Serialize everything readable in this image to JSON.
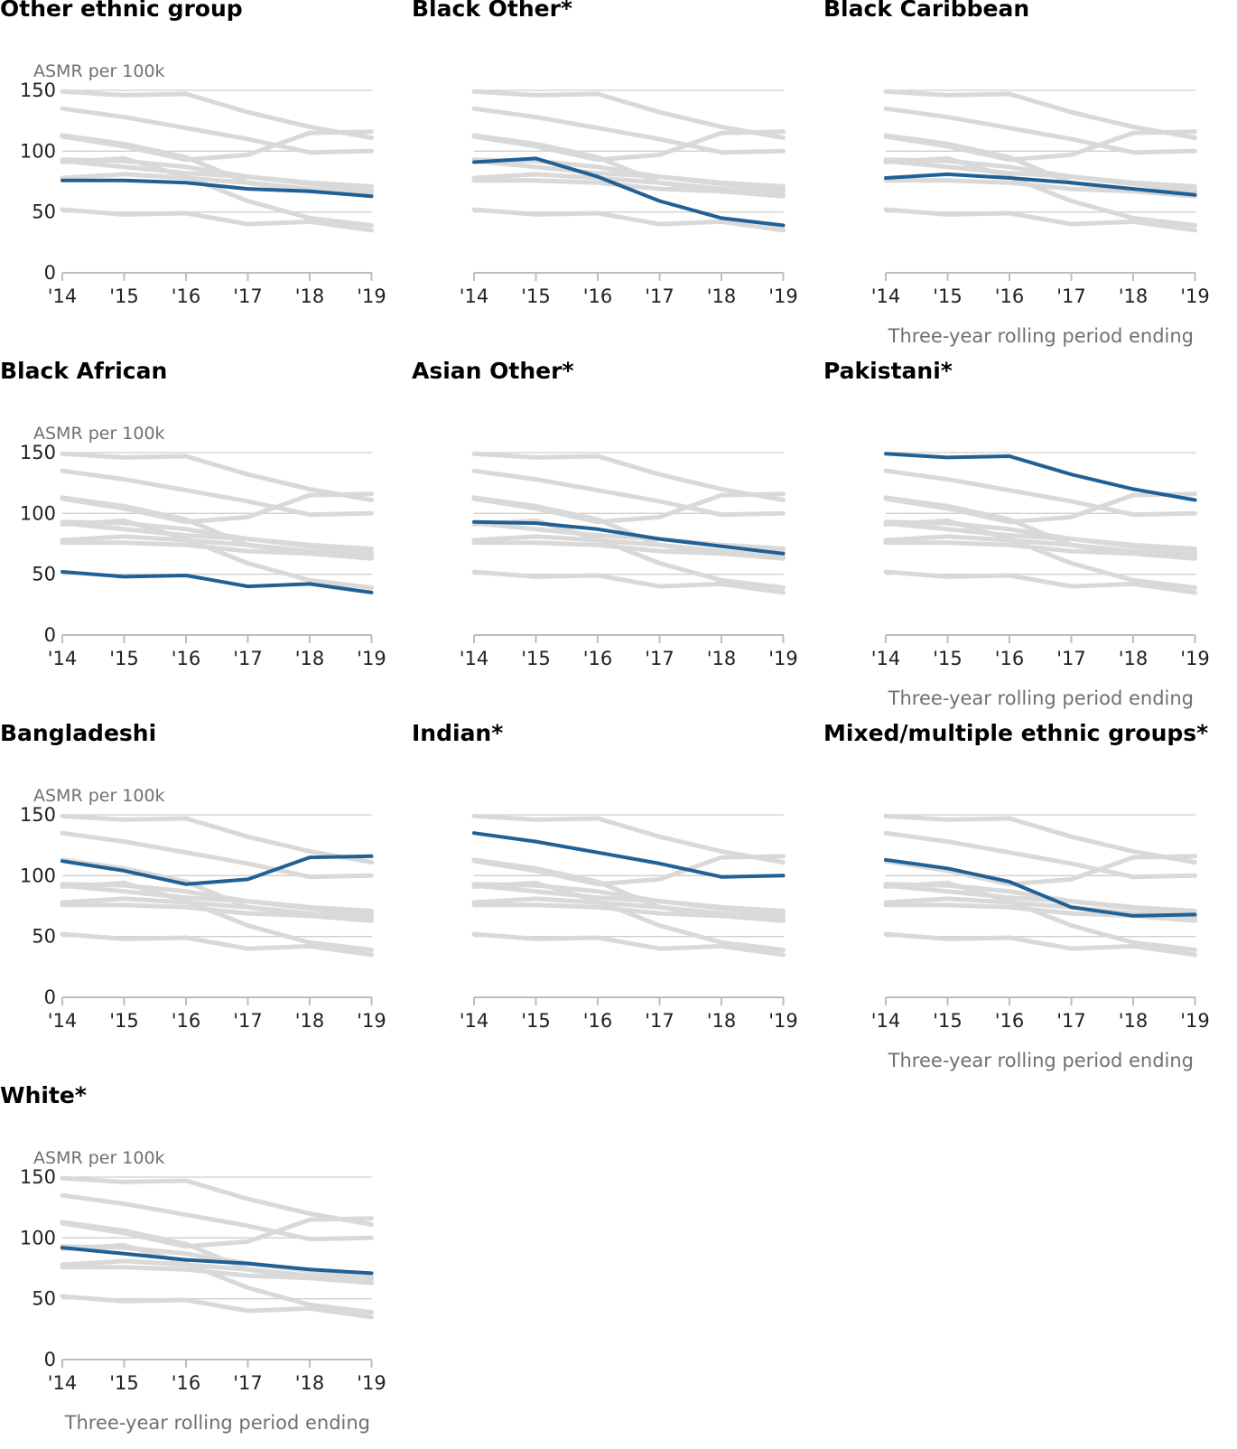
{
  "y_axis_label": "ASMR per 100k",
  "x_axis_label": "Three-year rolling period ending",
  "chart_data": [
    {
      "type": "line",
      "title": "Other ethnic group",
      "highlight": "Other ethnic group",
      "show_ylabel": true,
      "show_xlabel": false,
      "x": [
        "'14",
        "'15",
        "'16",
        "'17",
        "'18",
        "'19"
      ],
      "y_ticks": [
        "0",
        "50",
        "100",
        "150"
      ],
      "ylim": [
        0,
        150
      ],
      "grid": "horizontal",
      "highlight_color": "#206095",
      "background_color": "#d9d9d9"
    },
    {
      "type": "line",
      "title": "Black Other*",
      "highlight": "Black Other*",
      "show_ylabel": false,
      "show_xlabel": false,
      "x": [
        "'14",
        "'15",
        "'16",
        "'17",
        "'18",
        "'19"
      ],
      "y_ticks": [],
      "ylim": [
        0,
        150
      ],
      "grid": "horizontal",
      "highlight_color": "#206095",
      "background_color": "#d9d9d9"
    },
    {
      "type": "line",
      "title": "Black Caribbean",
      "highlight": "Black Caribbean",
      "show_ylabel": false,
      "show_xlabel": true,
      "x": [
        "'14",
        "'15",
        "'16",
        "'17",
        "'18",
        "'19"
      ],
      "y_ticks": [],
      "ylim": [
        0,
        150
      ],
      "grid": "horizontal",
      "highlight_color": "#206095",
      "background_color": "#d9d9d9"
    },
    {
      "type": "line",
      "title": "Black African",
      "highlight": "Black African",
      "show_ylabel": true,
      "show_xlabel": false,
      "x": [
        "'14",
        "'15",
        "'16",
        "'17",
        "'18",
        "'19"
      ],
      "y_ticks": [
        "0",
        "50",
        "100",
        "150"
      ],
      "ylim": [
        0,
        150
      ],
      "grid": "horizontal",
      "highlight_color": "#206095",
      "background_color": "#d9d9d9"
    },
    {
      "type": "line",
      "title": "Asian Other*",
      "highlight": "Asian Other*",
      "show_ylabel": false,
      "show_xlabel": false,
      "x": [
        "'14",
        "'15",
        "'16",
        "'17",
        "'18",
        "'19"
      ],
      "y_ticks": [],
      "ylim": [
        0,
        150
      ],
      "grid": "horizontal",
      "highlight_color": "#206095",
      "background_color": "#d9d9d9"
    },
    {
      "type": "line",
      "title": "Pakistani*",
      "highlight": "Pakistani*",
      "show_ylabel": false,
      "show_xlabel": true,
      "x": [
        "'14",
        "'15",
        "'16",
        "'17",
        "'18",
        "'19"
      ],
      "y_ticks": [],
      "ylim": [
        0,
        150
      ],
      "grid": "horizontal",
      "highlight_color": "#206095",
      "background_color": "#d9d9d9"
    },
    {
      "type": "line",
      "title": "Bangladeshi",
      "highlight": "Bangladeshi",
      "show_ylabel": true,
      "show_xlabel": false,
      "x": [
        "'14",
        "'15",
        "'16",
        "'17",
        "'18",
        "'19"
      ],
      "y_ticks": [
        "0",
        "50",
        "100",
        "150"
      ],
      "ylim": [
        0,
        150
      ],
      "grid": "horizontal",
      "highlight_color": "#206095",
      "background_color": "#d9d9d9"
    },
    {
      "type": "line",
      "title": "Indian*",
      "highlight": "Indian*",
      "show_ylabel": false,
      "show_xlabel": false,
      "x": [
        "'14",
        "'15",
        "'16",
        "'17",
        "'18",
        "'19"
      ],
      "y_ticks": [],
      "ylim": [
        0,
        150
      ],
      "grid": "horizontal",
      "highlight_color": "#206095",
      "background_color": "#d9d9d9"
    },
    {
      "type": "line",
      "title": "Mixed/multiple ethnic groups*",
      "highlight": "Mixed/multiple ethnic groups*",
      "show_ylabel": false,
      "show_xlabel": true,
      "x": [
        "'14",
        "'15",
        "'16",
        "'17",
        "'18",
        "'19"
      ],
      "y_ticks": [],
      "ylim": [
        0,
        150
      ],
      "grid": "horizontal",
      "highlight_color": "#206095",
      "background_color": "#d9d9d9"
    },
    {
      "type": "line",
      "title": "White*",
      "highlight": "White*",
      "show_ylabel": true,
      "show_xlabel": true,
      "x": [
        "'14",
        "'15",
        "'16",
        "'17",
        "'18",
        "'19"
      ],
      "y_ticks": [
        "0",
        "50",
        "100",
        "150"
      ],
      "ylim": [
        0,
        150
      ],
      "grid": "horizontal",
      "highlight_color": "#206095",
      "background_color": "#d9d9d9"
    }
  ],
  "series": [
    {
      "name": "Other ethnic group",
      "values": [
        76,
        76,
        74,
        69,
        67,
        63
      ]
    },
    {
      "name": "Black Other*",
      "values": [
        91,
        94,
        79,
        59,
        45,
        39
      ]
    },
    {
      "name": "Black Caribbean",
      "values": [
        78,
        81,
        78,
        74,
        69,
        64
      ]
    },
    {
      "name": "Black African",
      "values": [
        52,
        48,
        49,
        40,
        42,
        35
      ]
    },
    {
      "name": "Asian Other*",
      "values": [
        93,
        92,
        87,
        79,
        73,
        67
      ]
    },
    {
      "name": "Pakistani*",
      "values": [
        149,
        146,
        147,
        132,
        120,
        111
      ]
    },
    {
      "name": "Bangladeshi",
      "values": [
        112,
        104,
        93,
        97,
        115,
        116
      ]
    },
    {
      "name": "Indian*",
      "values": [
        135,
        128,
        119,
        110,
        99,
        100
      ]
    },
    {
      "name": "Mixed/multiple ethnic groups*",
      "values": [
        113,
        106,
        95,
        74,
        67,
        68
      ]
    },
    {
      "name": "White*",
      "values": [
        92,
        87,
        82,
        79,
        74,
        71
      ]
    }
  ]
}
